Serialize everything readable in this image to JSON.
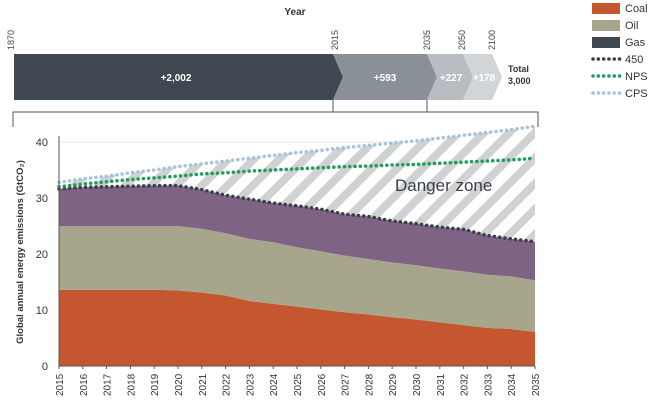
{
  "timeline": {
    "title": "Year",
    "year_labels": [
      "1870",
      "2015",
      "2035",
      "2050",
      "2100"
    ],
    "segments": [
      {
        "label": "+2,002",
        "value": 2002
      },
      {
        "label": "+593",
        "value": 593
      },
      {
        "label": "+227",
        "value": 227
      },
      {
        "label": "+178",
        "value": 178
      }
    ],
    "total_label_1": "Total",
    "total_label_2": "3,000"
  },
  "legend": {
    "items": [
      {
        "label": "Coal",
        "kind": "swatch",
        "color": "#c4572f"
      },
      {
        "label": "Oil",
        "kind": "swatch",
        "color": "#a7a68c"
      },
      {
        "label": "Gas",
        "kind": "swatch",
        "color": "#3f4850"
      },
      {
        "label": "450",
        "kind": "dots",
        "color": "#3b3f48"
      },
      {
        "label": "NPS",
        "kind": "dots",
        "color": "#1e9e5a"
      },
      {
        "label": "CPS",
        "kind": "dots",
        "color": "#a9c2dc"
      }
    ]
  },
  "colors": {
    "coal": "#c4572f",
    "oil": "#a7a68c",
    "gas": "#7e6385",
    "bar_dark": "#3f4850",
    "bar_mid": "#8a9097",
    "bar_light": "#b9bdc1",
    "bar_lighter": "#d2d5d8"
  },
  "chart_data": {
    "type": "area",
    "x": [
      "2015",
      "2016",
      "2017",
      "2018",
      "2019",
      "2020",
      "2021",
      "2022",
      "2023",
      "2024",
      "2025",
      "2026",
      "2027",
      "2028",
      "2029",
      "2030",
      "2031",
      "2032",
      "2033",
      "2034",
      "2035"
    ],
    "ylabel": "Global annual energy emissions (GtCO₂)",
    "ylim": [
      0,
      40
    ],
    "yticks": [
      0,
      10,
      20,
      30,
      40
    ],
    "annotation": "Danger zone",
    "stacked_series": [
      {
        "name": "Coal",
        "values": [
          13.6,
          13.6,
          13.6,
          13.6,
          13.6,
          13.5,
          13.1,
          12.6,
          11.6,
          11.1,
          10.6,
          10.1,
          9.6,
          9.2,
          8.7,
          8.3,
          7.8,
          7.3,
          6.8,
          6.6,
          6.1
        ]
      },
      {
        "name": "Oil",
        "values": [
          11.4,
          11.4,
          11.4,
          11.4,
          11.4,
          11.5,
          11.4,
          11.1,
          11.1,
          11.0,
          10.6,
          10.4,
          10.1,
          9.9,
          9.8,
          9.7,
          9.6,
          9.6,
          9.5,
          9.4,
          9.2
        ]
      },
      {
        "name": "Gas",
        "values": [
          6.6,
          6.9,
          7.0,
          7.1,
          7.2,
          7.2,
          7.0,
          6.8,
          7.1,
          7.0,
          7.4,
          7.5,
          7.4,
          7.6,
          7.4,
          7.4,
          7.4,
          7.5,
          7.0,
          6.7,
          6.9
        ]
      }
    ],
    "line_series": [
      {
        "name": "450",
        "values": [
          31.6,
          31.9,
          32.0,
          32.1,
          32.2,
          32.2,
          31.5,
          30.5,
          29.8,
          29.1,
          28.6,
          28.0,
          27.1,
          26.7,
          25.9,
          25.4,
          24.8,
          24.4,
          23.3,
          22.7,
          22.2
        ]
      },
      {
        "name": "NPS",
        "values": [
          32.0,
          32.5,
          32.9,
          33.3,
          33.6,
          33.9,
          34.3,
          34.5,
          34.8,
          35.0,
          35.2,
          35.4,
          35.6,
          35.7,
          35.9,
          36.0,
          36.2,
          36.4,
          36.6,
          36.8,
          37.1
        ]
      },
      {
        "name": "CPS",
        "values": [
          32.8,
          33.4,
          33.9,
          34.5,
          35.0,
          35.6,
          36.1,
          36.6,
          37.1,
          37.6,
          38.1,
          38.5,
          39.0,
          39.4,
          39.8,
          40.2,
          40.7,
          41.2,
          41.7,
          42.2,
          42.8
        ]
      }
    ]
  }
}
